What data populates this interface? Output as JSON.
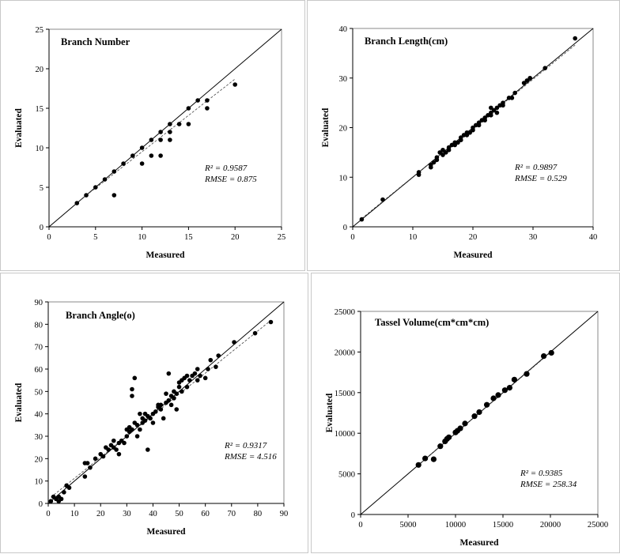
{
  "chart_data": [
    {
      "type": "scatter",
      "title": "Branch Number",
      "xlabel": "Measured",
      "ylabel": "Evaluated",
      "xlim": [
        0,
        25
      ],
      "ylim": [
        0,
        25
      ],
      "xticks": [
        0,
        5,
        10,
        15,
        20,
        25
      ],
      "yticks": [
        0,
        5,
        10,
        15,
        20,
        25
      ],
      "r2": "R² = 0.9587",
      "rmse": "RMSE = 0.875",
      "fit": {
        "slope": 0.92,
        "intercept": 0.3,
        "x_range": [
          3,
          20
        ]
      },
      "points": [
        [
          3,
          3
        ],
        [
          4,
          4
        ],
        [
          5,
          5
        ],
        [
          6,
          6
        ],
        [
          7,
          7
        ],
        [
          7,
          4
        ],
        [
          8,
          8
        ],
        [
          9,
          9
        ],
        [
          10,
          10
        ],
        [
          10,
          8
        ],
        [
          11,
          11
        ],
        [
          11,
          9
        ],
        [
          12,
          12
        ],
        [
          12,
          11
        ],
        [
          12,
          9
        ],
        [
          13,
          13
        ],
        [
          13,
          12
        ],
        [
          13,
          11
        ],
        [
          14,
          13
        ],
        [
          15,
          15
        ],
        [
          15,
          13
        ],
        [
          16,
          16
        ],
        [
          17,
          16
        ],
        [
          17,
          15
        ],
        [
          20,
          18
        ]
      ]
    },
    {
      "type": "scatter",
      "title": "Branch Length(cm)",
      "xlabel": "Measured",
      "ylabel": "Evaluated",
      "xlim": [
        0,
        40
      ],
      "ylim": [
        0,
        40
      ],
      "xticks": [
        0,
        10,
        20,
        30,
        40
      ],
      "yticks": [
        0,
        10,
        20,
        30,
        40
      ],
      "r2": "R² = 0.9897",
      "rmse": "RMSE = 0.529",
      "fit": {
        "slope": 0.985,
        "intercept": 0.2,
        "x_range": [
          1.5,
          37
        ]
      },
      "points": [
        [
          1.5,
          1.5
        ],
        [
          5,
          5.5
        ],
        [
          11,
          11
        ],
        [
          11,
          10.5
        ],
        [
          13,
          12.5
        ],
        [
          13,
          12
        ],
        [
          13.5,
          13
        ],
        [
          14,
          14
        ],
        [
          14,
          13.5
        ],
        [
          14.5,
          15
        ],
        [
          15,
          14.5
        ],
        [
          15,
          15.5
        ],
        [
          15.5,
          15
        ],
        [
          16,
          16
        ],
        [
          16,
          15.5
        ],
        [
          16.5,
          16.5
        ],
        [
          17,
          16.5
        ],
        [
          17,
          17
        ],
        [
          17.5,
          17
        ],
        [
          18,
          18
        ],
        [
          18,
          17.5
        ],
        [
          18.5,
          18.5
        ],
        [
          19,
          19
        ],
        [
          19,
          18.5
        ],
        [
          19.5,
          19
        ],
        [
          20,
          20
        ],
        [
          20,
          19.5
        ],
        [
          20.5,
          20.5
        ],
        [
          21,
          20.5
        ],
        [
          21,
          21
        ],
        [
          21.5,
          21.5
        ],
        [
          22,
          22
        ],
        [
          22,
          21.5
        ],
        [
          22.5,
          22.5
        ],
        [
          23,
          23
        ],
        [
          23,
          22.5
        ],
        [
          23,
          24
        ],
        [
          23.5,
          23.5
        ],
        [
          24,
          24
        ],
        [
          24,
          23
        ],
        [
          24.5,
          24.5
        ],
        [
          25,
          24.5
        ],
        [
          25,
          25
        ],
        [
          26,
          26
        ],
        [
          26.5,
          26
        ],
        [
          27,
          27
        ],
        [
          28.5,
          29
        ],
        [
          29,
          29.5
        ],
        [
          29.5,
          30
        ],
        [
          32,
          32
        ],
        [
          37,
          38
        ]
      ]
    },
    {
      "type": "scatter",
      "title": "Branch Angle(o)",
      "xlabel": "Measured",
      "ylabel": "Evaluated",
      "xlim": [
        0,
        90
      ],
      "ylim": [
        0,
        90
      ],
      "xticks": [
        0,
        10,
        20,
        30,
        40,
        50,
        60,
        70,
        80,
        90
      ],
      "yticks": [
        0,
        10,
        20,
        30,
        40,
        50,
        60,
        70,
        80,
        90
      ],
      "r2": "R² = 0.9317",
      "rmse": "RMSE = 4.516",
      "fit": {
        "slope": 0.94,
        "intercept": 1.8,
        "x_range": [
          1,
          85
        ]
      },
      "points": [
        [
          1,
          1
        ],
        [
          2,
          3
        ],
        [
          3,
          2
        ],
        [
          4,
          1
        ],
        [
          4,
          3
        ],
        [
          5,
          2
        ],
        [
          6,
          5
        ],
        [
          7,
          8
        ],
        [
          8,
          7
        ],
        [
          14,
          12
        ],
        [
          14,
          18
        ],
        [
          15,
          18
        ],
        [
          16,
          16
        ],
        [
          18,
          20
        ],
        [
          20,
          22
        ],
        [
          21,
          21
        ],
        [
          22,
          25
        ],
        [
          23,
          24
        ],
        [
          24,
          26
        ],
        [
          25,
          25
        ],
        [
          25,
          28
        ],
        [
          26,
          24
        ],
        [
          27,
          27
        ],
        [
          27,
          22
        ],
        [
          28,
          28
        ],
        [
          29,
          27
        ],
        [
          30,
          30
        ],
        [
          30,
          33
        ],
        [
          31,
          32
        ],
        [
          31,
          34
        ],
        [
          32,
          33
        ],
        [
          32,
          48
        ],
        [
          32,
          51
        ],
        [
          33,
          56
        ],
        [
          33,
          36
        ],
        [
          34,
          35
        ],
        [
          34,
          30
        ],
        [
          35,
          33
        ],
        [
          35,
          40
        ],
        [
          36,
          36
        ],
        [
          36,
          38
        ],
        [
          37,
          37
        ],
        [
          37,
          40
        ],
        [
          38,
          39
        ],
        [
          38,
          24
        ],
        [
          39,
          38
        ],
        [
          40,
          40
        ],
        [
          40,
          36
        ],
        [
          41,
          41
        ],
        [
          42,
          44
        ],
        [
          42,
          43
        ],
        [
          43,
          42
        ],
        [
          43,
          44
        ],
        [
          44,
          38
        ],
        [
          45,
          45
        ],
        [
          45,
          49
        ],
        [
          46,
          58
        ],
        [
          46,
          46
        ],
        [
          47,
          48
        ],
        [
          47,
          44
        ],
        [
          48,
          47
        ],
        [
          48,
          50
        ],
        [
          49,
          49
        ],
        [
          49,
          42
        ],
        [
          50,
          52
        ],
        [
          50,
          54
        ],
        [
          51,
          50
        ],
        [
          51,
          55
        ],
        [
          52,
          56
        ],
        [
          53,
          52
        ],
        [
          53,
          57
        ],
        [
          54,
          55
        ],
        [
          55,
          57
        ],
        [
          56,
          58
        ],
        [
          57,
          60
        ],
        [
          57,
          55
        ],
        [
          58,
          57
        ],
        [
          60,
          56
        ],
        [
          61,
          60
        ],
        [
          62,
          64
        ],
        [
          64,
          61
        ],
        [
          65,
          66
        ],
        [
          71,
          72
        ],
        [
          79,
          76
        ],
        [
          85,
          81
        ]
      ]
    },
    {
      "type": "scatter",
      "title": "Tassel  Volume(cm*cm*cm)",
      "xlabel": "Measured",
      "ylabel": "Evaluated",
      "xlim": [
        0,
        25000
      ],
      "ylim": [
        0,
        25000
      ],
      "xticks": [
        0,
        5000,
        10000,
        15000,
        20000,
        25000
      ],
      "yticks": [
        0,
        5000,
        10000,
        15000,
        20000,
        25000
      ],
      "r2": "R² = 0.9385",
      "rmse": "RMSE = 258.34",
      "fit": {
        "slope": 0.995,
        "intercept": 30,
        "x_range": [
          6100,
          20200
        ]
      },
      "points": [
        [
          6100,
          6100
        ],
        [
          6800,
          6900
        ],
        [
          7700,
          6800
        ],
        [
          8400,
          8400
        ],
        [
          8900,
          9000
        ],
        [
          9100,
          9300
        ],
        [
          9300,
          9500
        ],
        [
          10000,
          10100
        ],
        [
          10200,
          10300
        ],
        [
          10500,
          10600
        ],
        [
          11000,
          11200
        ],
        [
          12000,
          12100
        ],
        [
          12500,
          12600
        ],
        [
          13300,
          13500
        ],
        [
          14000,
          14300
        ],
        [
          14500,
          14700
        ],
        [
          15200,
          15300
        ],
        [
          15700,
          15600
        ],
        [
          16200,
          16600
        ],
        [
          17500,
          17300
        ],
        [
          19300,
          19500
        ],
        [
          20100,
          19900
        ]
      ]
    }
  ]
}
